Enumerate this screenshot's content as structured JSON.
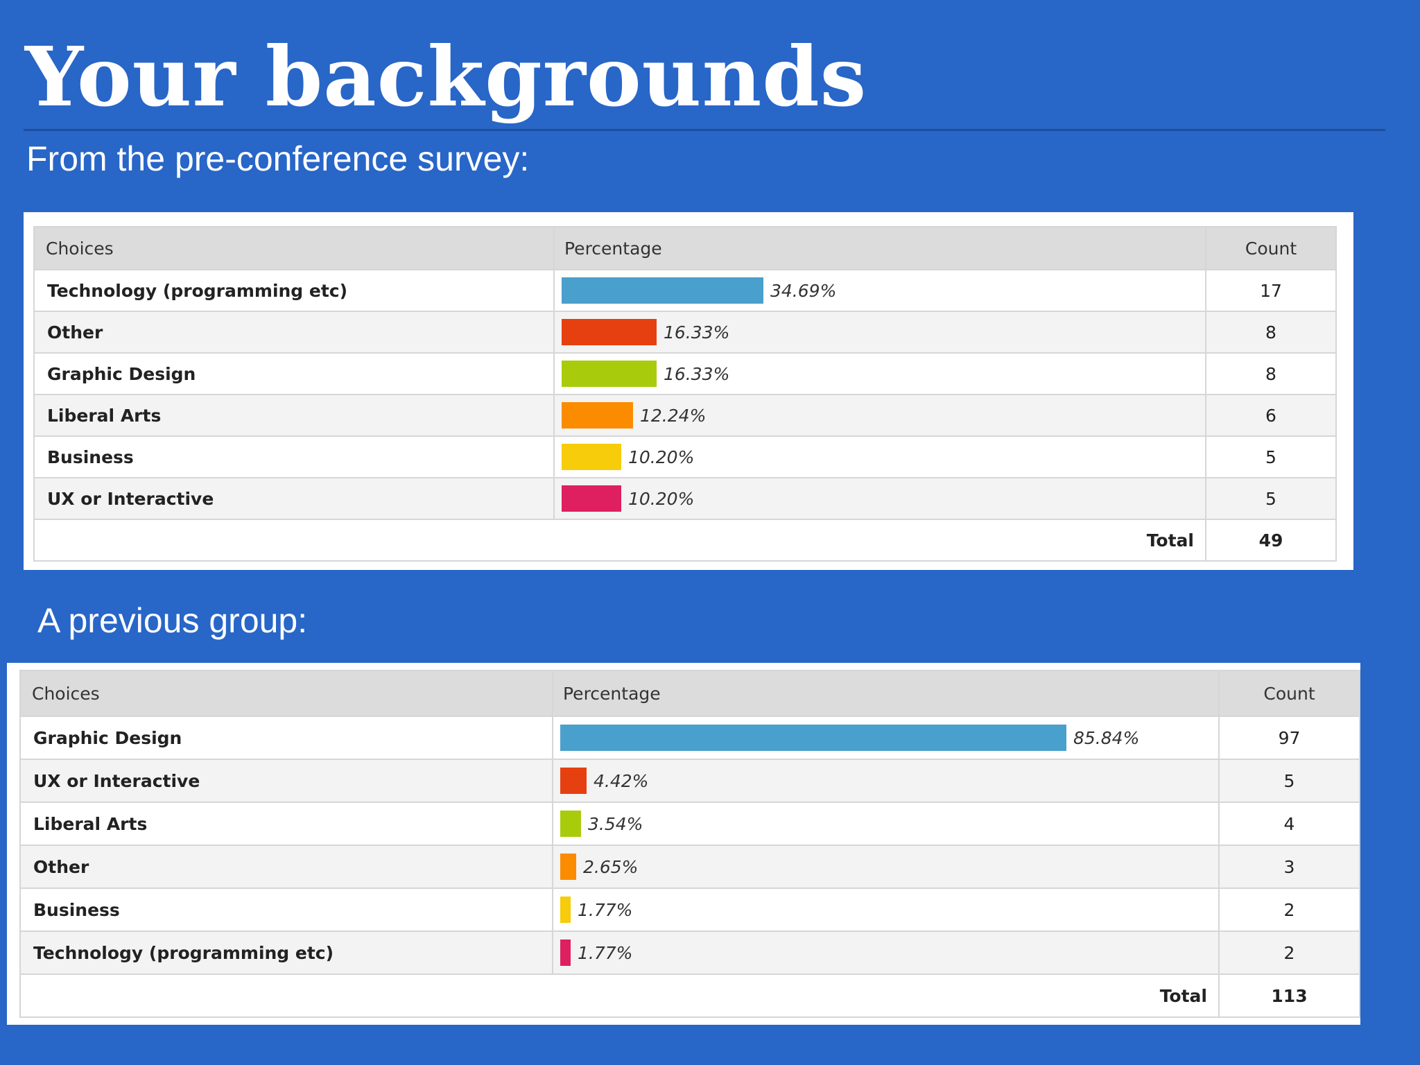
{
  "slide": {
    "title": "Your backgrounds",
    "subtitle1": "From the pre-conference survey:",
    "subtitle2": "A previous group:"
  },
  "chart_data": [
    {
      "type": "table",
      "headers": {
        "choices": "Choices",
        "percentage": "Percentage",
        "count": "Count"
      },
      "rows": [
        {
          "choice": "Technology (programming etc)",
          "percent": 34.69,
          "percent_label": "34.69%",
          "count": "17",
          "color": "#4aa0cc"
        },
        {
          "choice": "Other",
          "percent": 16.33,
          "percent_label": "16.33%",
          "count": "8",
          "color": "#e64010"
        },
        {
          "choice": "Graphic Design",
          "percent": 16.33,
          "percent_label": "16.33%",
          "count": "8",
          "color": "#a8cc0c"
        },
        {
          "choice": "Liberal Arts",
          "percent": 12.24,
          "percent_label": "12.24%",
          "count": "6",
          "color": "#fb8c00"
        },
        {
          "choice": "Business",
          "percent": 10.2,
          "percent_label": "10.20%",
          "count": "5",
          "color": "#f7cc0a"
        },
        {
          "choice": "UX or Interactive",
          "percent": 10.2,
          "percent_label": "10.20%",
          "count": "5",
          "color": "#de2060"
        }
      ],
      "total_label": "Total",
      "total": "49"
    },
    {
      "type": "table",
      "headers": {
        "choices": "Choices",
        "percentage": "Percentage",
        "count": "Count"
      },
      "rows": [
        {
          "choice": "Graphic Design",
          "percent": 85.84,
          "percent_label": "85.84%",
          "count": "97",
          "color": "#4aa0cc"
        },
        {
          "choice": "UX or Interactive",
          "percent": 4.42,
          "percent_label": "4.42%",
          "count": "5",
          "color": "#e64010"
        },
        {
          "choice": "Liberal Arts",
          "percent": 3.54,
          "percent_label": "3.54%",
          "count": "4",
          "color": "#a8cc0c"
        },
        {
          "choice": "Other",
          "percent": 2.65,
          "percent_label": "2.65%",
          "count": "3",
          "color": "#fb8c00"
        },
        {
          "choice": "Business",
          "percent": 1.77,
          "percent_label": "1.77%",
          "count": "2",
          "color": "#f7cc0a"
        },
        {
          "choice": "Technology (programming etc)",
          "percent": 1.77,
          "percent_label": "1.77%",
          "count": "2",
          "color": "#de2060"
        }
      ],
      "total_label": "Total",
      "total": "113"
    }
  ]
}
